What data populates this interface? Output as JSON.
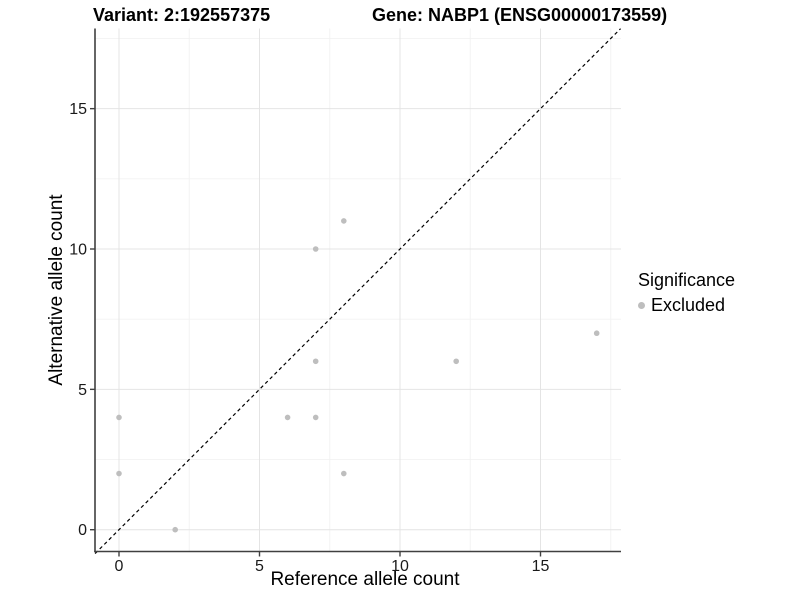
{
  "chart_data": {
    "type": "scatter",
    "title_left": "Variant: 2:192557375",
    "title_right": "Gene: NABP1 (ENSG00000173559)",
    "xlabel": "Reference allele count",
    "ylabel": "Alternative allele count",
    "xlim": [
      -0.85,
      17.85
    ],
    "ylim": [
      -0.85,
      17.85
    ],
    "x_major_ticks": [
      0,
      5,
      10,
      15
    ],
    "y_major_ticks": [
      0,
      5,
      10,
      15
    ],
    "x_minor_ticks": [
      2.5,
      7.5,
      12.5,
      17.5
    ],
    "y_minor_ticks": [
      2.5,
      7.5,
      12.5,
      17.5
    ],
    "grid": true,
    "series": [
      {
        "name": "Excluded",
        "color": "#bebebe",
        "points": [
          [
            0,
            2
          ],
          [
            0,
            4
          ],
          [
            2,
            0
          ],
          [
            6,
            4
          ],
          [
            7,
            4
          ],
          [
            7,
            6
          ],
          [
            7,
            10
          ],
          [
            8,
            2
          ],
          [
            8,
            11
          ],
          [
            12,
            6
          ],
          [
            17,
            7
          ]
        ]
      }
    ],
    "reference_line": {
      "type": "identity",
      "slope": 1,
      "intercept": 0,
      "style": "dashed",
      "color": "#000000"
    },
    "legend": {
      "title": "Significance",
      "position": "right",
      "items": [
        {
          "label": "Excluded",
          "color": "#bebebe",
          "marker": "circle"
        }
      ]
    },
    "colors": {
      "grid_major": "#e4e4e4",
      "grid_minor": "#f2f2f2",
      "axis_line": "#404040",
      "tick_text": "#1a1a1a"
    }
  }
}
